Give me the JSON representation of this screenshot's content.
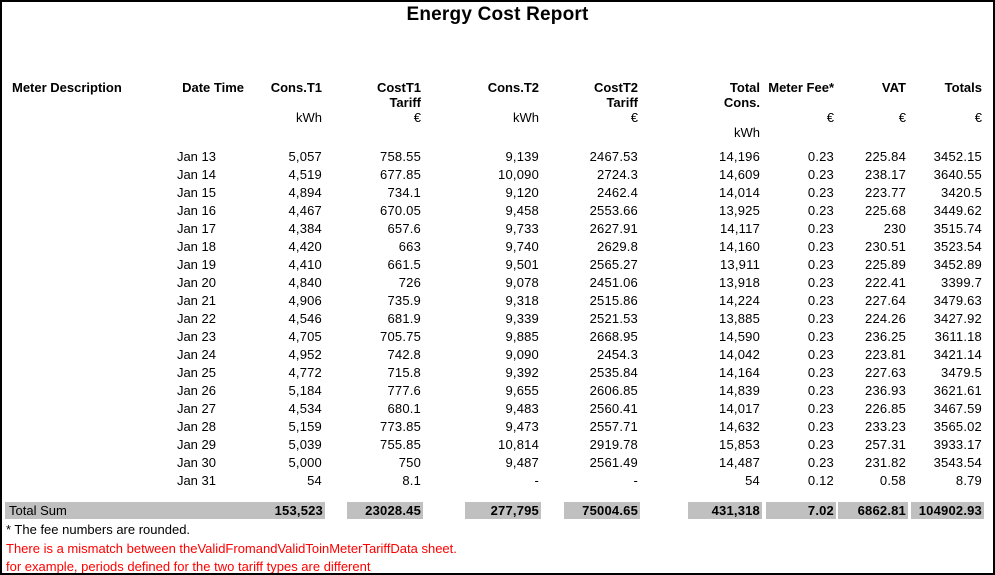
{
  "title": "Energy Cost Report",
  "table": {
    "columns": [
      {
        "line1": "Meter Description",
        "line2": "",
        "line3": "",
        "line4": ""
      },
      {
        "line1": "Date Time",
        "line2": "",
        "line3": "",
        "line4": ""
      },
      {
        "line1": "Cons.T1",
        "line2": "",
        "line3": "kWh",
        "line4": ""
      },
      {
        "line1": "CostT1",
        "line2": "Tariff",
        "line3": "€",
        "line4": ""
      },
      {
        "line1": "Cons.T2",
        "line2": "",
        "line3": "kWh",
        "line4": ""
      },
      {
        "line1": "CostT2",
        "line2": "Tariff",
        "line3": "€",
        "line4": ""
      },
      {
        "line1": "Total",
        "line2": "Cons.",
        "line3": "",
        "line4": "kWh"
      },
      {
        "line1": "Meter Fee*",
        "line2": "",
        "line3": "€",
        "line4": ""
      },
      {
        "line1": "VAT",
        "line2": "",
        "line3": "€",
        "line4": ""
      },
      {
        "line1": "Totals",
        "line2": "",
        "line3": "€",
        "line4": ""
      }
    ],
    "rows": [
      [
        "",
        "Jan 13",
        "5,057",
        "758.55",
        "9,139",
        "2467.53",
        "14,196",
        "0.23",
        "225.84",
        "3452.15"
      ],
      [
        "",
        "Jan 14",
        "4,519",
        "677.85",
        "10,090",
        "2724.3",
        "14,609",
        "0.23",
        "238.17",
        "3640.55"
      ],
      [
        "",
        "Jan 15",
        "4,894",
        "734.1",
        "9,120",
        "2462.4",
        "14,014",
        "0.23",
        "223.77",
        "3420.5"
      ],
      [
        "",
        "Jan 16",
        "4,467",
        "670.05",
        "9,458",
        "2553.66",
        "13,925",
        "0.23",
        "225.68",
        "3449.62"
      ],
      [
        "",
        "Jan 17",
        "4,384",
        "657.6",
        "9,733",
        "2627.91",
        "14,117",
        "0.23",
        "230",
        "3515.74"
      ],
      [
        "",
        "Jan 18",
        "4,420",
        "663",
        "9,740",
        "2629.8",
        "14,160",
        "0.23",
        "230.51",
        "3523.54"
      ],
      [
        "",
        "Jan 19",
        "4,410",
        "661.5",
        "9,501",
        "2565.27",
        "13,911",
        "0.23",
        "225.89",
        "3452.89"
      ],
      [
        "",
        "Jan 20",
        "4,840",
        "726",
        "9,078",
        "2451.06",
        "13,918",
        "0.23",
        "222.41",
        "3399.7"
      ],
      [
        "",
        "Jan 21",
        "4,906",
        "735.9",
        "9,318",
        "2515.86",
        "14,224",
        "0.23",
        "227.64",
        "3479.63"
      ],
      [
        "",
        "Jan 22",
        "4,546",
        "681.9",
        "9,339",
        "2521.53",
        "13,885",
        "0.23",
        "224.26",
        "3427.92"
      ],
      [
        "",
        "Jan 23",
        "4,705",
        "705.75",
        "9,885",
        "2668.95",
        "14,590",
        "0.23",
        "236.25",
        "3611.18"
      ],
      [
        "",
        "Jan 24",
        "4,952",
        "742.8",
        "9,090",
        "2454.3",
        "14,042",
        "0.23",
        "223.81",
        "3421.14"
      ],
      [
        "",
        "Jan 25",
        "4,772",
        "715.8",
        "9,392",
        "2535.84",
        "14,164",
        "0.23",
        "227.63",
        "3479.5"
      ],
      [
        "",
        "Jan 26",
        "5,184",
        "777.6",
        "9,655",
        "2606.85",
        "14,839",
        "0.23",
        "236.93",
        "3621.61"
      ],
      [
        "",
        "Jan 27",
        "4,534",
        "680.1",
        "9,483",
        "2560.41",
        "14,017",
        "0.23",
        "226.85",
        "3467.59"
      ],
      [
        "",
        "Jan 28",
        "5,159",
        "773.85",
        "9,473",
        "2557.71",
        "14,632",
        "0.23",
        "233.23",
        "3565.02"
      ],
      [
        "",
        "Jan 29",
        "5,039",
        "755.85",
        "10,814",
        "2919.78",
        "15,853",
        "0.23",
        "257.31",
        "3933.17"
      ],
      [
        "",
        "Jan 30",
        "5,000",
        "750",
        "9,487",
        "2561.49",
        "14,487",
        "0.23",
        "231.82",
        "3543.54"
      ],
      [
        "",
        "Jan 31",
        "54",
        "8.1",
        "-",
        "-",
        "54",
        "0.12",
        "0.58",
        "8.79"
      ]
    ],
    "total_row": {
      "label": "Total Sum",
      "values": [
        "153,523",
        "23028.45",
        "277,795",
        "75004.65",
        "431,318",
        "7.02",
        "6862.81",
        "104902.93"
      ]
    }
  },
  "footnotes": [
    {
      "text": "* The fee numbers are rounded.",
      "color": "black"
    },
    {
      "text": "There is a mismatch between theValidFromandValidToinMeterTariffData sheet.",
      "color": "red"
    },
    {
      "text": "for example, periods defined for the two tariff types are different",
      "color": "red"
    }
  ],
  "colors": {
    "highlight": "#c0c0c0",
    "warning_text": "#ff0000",
    "text": "#000000",
    "background": "#ffffff",
    "border": "#000000"
  }
}
